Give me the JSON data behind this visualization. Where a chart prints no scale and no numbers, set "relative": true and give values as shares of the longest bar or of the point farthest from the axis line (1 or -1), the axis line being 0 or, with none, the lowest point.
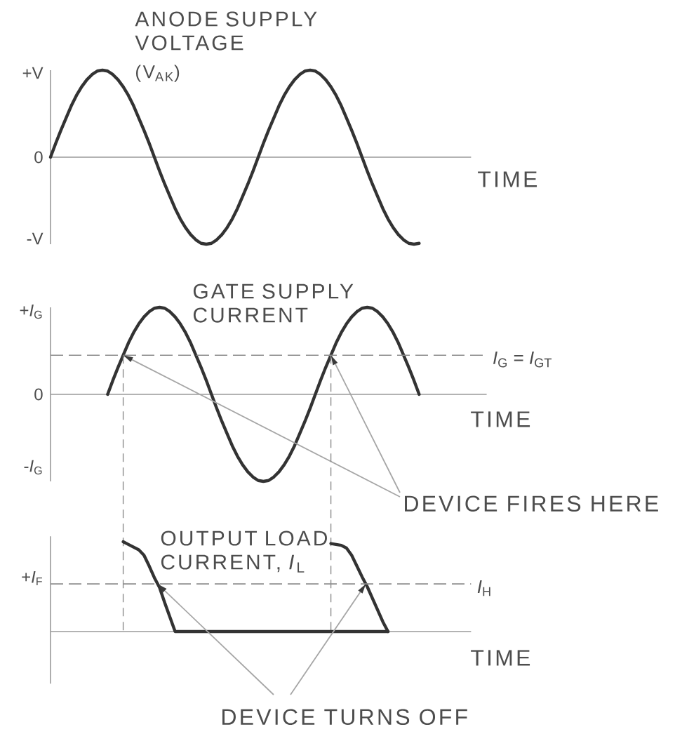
{
  "chart_data": [
    {
      "type": "line",
      "relative": true,
      "title": "ANODE SUPPLY VOLTAGE",
      "subtitle": "(V$_{AK}$)",
      "xlabel": "TIME",
      "categories": [
        null,
        null,
        null,
        null,
        null,
        null,
        null,
        null,
        null,
        null,
        null,
        null,
        null,
        null,
        null,
        null,
        null,
        null,
        null,
        null,
        null,
        null,
        null,
        null,
        null,
        null,
        null,
        null,
        null,
        null,
        null,
        null,
        null,
        null,
        null,
        null,
        null,
        null,
        null,
        null,
        null,
        null,
        null,
        null,
        null,
        null,
        null,
        null,
        null,
        null,
        null,
        null,
        null,
        null,
        null,
        null,
        null,
        null,
        null,
        null,
        null,
        null,
        null,
        null,
        null,
        null,
        null,
        null,
        null,
        null,
        null,
        null,
        null,
        null,
        null,
        null,
        null,
        null,
        null,
        null,
        null,
        null
      ],
      "values": [
        0,
        0.16,
        0.31,
        0.45,
        0.59,
        0.71,
        0.81,
        0.89,
        0.95,
        0.99,
        1,
        0.99,
        0.95,
        0.89,
        0.81,
        0.71,
        0.59,
        0.45,
        0.31,
        0.16,
        0,
        -0.16,
        -0.31,
        -0.45,
        -0.59,
        -0.71,
        -0.81,
        -0.89,
        -0.95,
        -0.99,
        -1,
        -0.99,
        -0.95,
        -0.89,
        -0.81,
        -0.71,
        -0.59,
        -0.45,
        -0.31,
        -0.16,
        0,
        0.16,
        0.31,
        0.45,
        0.59,
        0.71,
        0.81,
        0.89,
        0.95,
        0.99,
        1,
        0.99,
        0.95,
        0.89,
        0.81,
        0.71,
        0.59,
        0.45,
        0.31,
        0.16,
        0,
        -0.16,
        -0.31,
        -0.45,
        -0.59,
        -0.71,
        -0.81,
        -0.89,
        -0.95,
        -0.99,
        -1,
        -0.99,
        null,
        null,
        null,
        null,
        null,
        null,
        null,
        null,
        null,
        null
      ],
      "color": "#333333",
      "annotations": [
        "+V",
        "0",
        "-V"
      ]
    },
    {
      "type": "line",
      "relative": true,
      "title": "GATE SUPPLY CURRENT",
      "xlabel": "TIME",
      "categories": [
        null,
        null,
        null,
        null,
        null,
        null,
        null,
        null,
        null,
        null,
        null,
        null,
        null,
        null,
        null,
        null,
        null,
        null,
        null,
        null,
        null,
        null,
        null,
        null,
        null,
        null,
        null,
        null,
        null,
        null,
        null,
        null,
        null,
        null,
        null,
        null,
        null,
        null,
        null,
        null,
        null,
        null,
        null,
        null,
        null,
        null,
        null,
        null,
        null,
        null,
        null,
        null,
        null,
        null,
        null,
        null,
        null,
        null,
        null,
        null,
        null,
        null,
        null,
        null,
        null,
        null,
        null,
        null,
        null,
        null,
        null,
        null,
        null,
        null,
        null,
        null,
        null,
        null,
        null,
        null,
        null,
        null,
        null,
        null,
        null
      ],
      "values": [
        null,
        null,
        null,
        null,
        null,
        null,
        null,
        null,
        null,
        null,
        null,
        0,
        0.16,
        0.31,
        0.45,
        0.59,
        0.71,
        0.81,
        0.89,
        0.95,
        0.99,
        1,
        0.99,
        0.95,
        0.89,
        0.81,
        0.71,
        0.59,
        0.45,
        0.31,
        0.16,
        0,
        -0.16,
        -0.31,
        -0.45,
        -0.59,
        -0.71,
        -0.81,
        -0.89,
        -0.95,
        -0.99,
        -1,
        -0.99,
        -0.95,
        -0.89,
        -0.81,
        -0.71,
        -0.59,
        -0.45,
        -0.31,
        -0.16,
        0,
        0.16,
        0.31,
        0.45,
        0.59,
        0.71,
        0.81,
        0.89,
        0.95,
        0.99,
        1,
        0.99,
        0.95,
        0.89,
        0.81,
        0.71,
        0.59,
        0.45,
        0.31,
        0.16,
        0,
        null,
        null,
        null,
        null,
        null,
        null,
        null,
        null,
        null,
        null,
        null,
        null,
        null
      ],
      "color": "#333333",
      "ref_lines": [
        {
          "axis": "y",
          "value": 0.45,
          "label": "*I*$_{G}$ = *I*$_{GT}$",
          "line_style": "dashed",
          "color": "#8c8c8c"
        }
      ],
      "annotations": [
        "+*I*$_{G}$",
        "0",
        "-*I*$_{G}$",
        "DEVICE FIRES HERE"
      ]
    },
    {
      "type": "line",
      "relative": true,
      "title": "OUTPUT LOAD CURRENT, *I*$_{L}$",
      "xlabel": "TIME",
      "categories": [
        null,
        null,
        null,
        null,
        null,
        null,
        null,
        null,
        null,
        null,
        null,
        null,
        null,
        null,
        null,
        null,
        null,
        null,
        null,
        null,
        null,
        null,
        null,
        null,
        null,
        null,
        null,
        null,
        null,
        null,
        null,
        null,
        null,
        null,
        null,
        null,
        null,
        null,
        null,
        null,
        null,
        null,
        null,
        null,
        null,
        null,
        null,
        null,
        null,
        null,
        null,
        null,
        null,
        null,
        null,
        null,
        null,
        null,
        null,
        null,
        null,
        null,
        null,
        null,
        null,
        null,
        null,
        null,
        null,
        null,
        null,
        null,
        null,
        null,
        null,
        null,
        null,
        null,
        null,
        null,
        null,
        null
      ],
      "series": [
        {
          "color": "#333333",
          "values": [
            null,
            null,
            null,
            null,
            null,
            null,
            null,
            null,
            null,
            null,
            null,
            null,
            null,
            null,
            1,
            0.97,
            0.94,
            0.91,
            0.85,
            0.73,
            0.6,
            0.49,
            0.32,
            0.16,
            0,
            0,
            0,
            0,
            0,
            0,
            0,
            0,
            0,
            0,
            0,
            0,
            0,
            0,
            0,
            0,
            0,
            0,
            0,
            0,
            0,
            0,
            0,
            0,
            0,
            0,
            0,
            0,
            0,
            0,
            0,
            0,
            0,
            0,
            0,
            0,
            0,
            0,
            0,
            0,
            0,
            0,
            null,
            null,
            null,
            null,
            null,
            null,
            null,
            null,
            null,
            null,
            null,
            null,
            null,
            null,
            null,
            null
          ]
        },
        {
          "color": "#333333",
          "values": [
            null,
            null,
            null,
            null,
            null,
            null,
            null,
            null,
            null,
            null,
            null,
            null,
            null,
            null,
            null,
            null,
            null,
            null,
            null,
            null,
            null,
            null,
            null,
            null,
            null,
            null,
            null,
            null,
            null,
            null,
            null,
            null,
            null,
            null,
            null,
            null,
            null,
            null,
            null,
            null,
            null,
            null,
            null,
            null,
            null,
            null,
            null,
            null,
            null,
            null,
            null,
            null,
            null,
            null,
            0.98,
            0.97,
            0.96,
            0.93,
            0.85,
            0.73,
            0.61,
            0.5,
            0.37,
            0.24,
            0.11,
            0,
            null,
            null,
            null,
            null,
            null,
            null,
            null,
            null,
            null,
            null,
            null,
            null,
            null,
            null,
            null,
            null
          ]
        }
      ],
      "ref_lines": [
        {
          "axis": "y",
          "value": 0.53,
          "label": "*I*$_{H}$",
          "line_style": "dashed",
          "color": "#8c8c8c"
        }
      ],
      "annotations": [
        "+*I*$_{F}$",
        "DEVICE TURNS OFF"
      ]
    }
  ]
}
